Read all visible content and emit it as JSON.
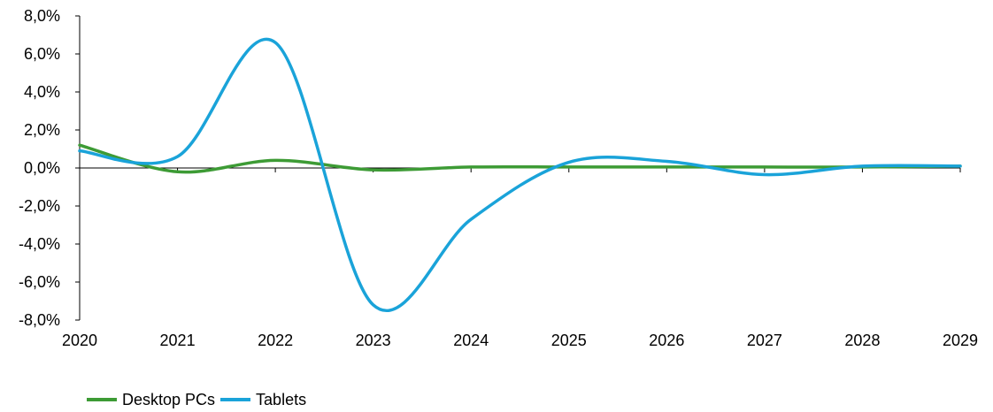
{
  "chart_data": {
    "type": "line",
    "title": "",
    "xlabel": "",
    "ylabel": "",
    "x": [
      2020,
      2021,
      2022,
      2023,
      2024,
      2025,
      2026,
      2027,
      2028,
      2029
    ],
    "x_tick_labels": [
      "2020",
      "2021",
      "2022",
      "2023",
      "2024",
      "2025",
      "2026",
      "2027",
      "2028",
      "2029"
    ],
    "y_tick_labels": [
      "8,0%",
      "6,0%",
      "4,0%",
      "2,0%",
      "0,0%",
      "-2,0%",
      "-4,0%",
      "-6,0%",
      "-8,0%"
    ],
    "ylim": [
      -8.0,
      8.0
    ],
    "y_unit": "%",
    "grid": false,
    "smoothed": true,
    "legend_position": "bottom-left",
    "series": [
      {
        "name": "Desktop PCs",
        "color": "#3d9b35",
        "values": [
          1.2,
          -0.2,
          0.4,
          -0.1,
          0.05,
          0.05,
          0.05,
          0.05,
          0.05,
          0.1
        ]
      },
      {
        "name": "Tablets",
        "color": "#1aa3d9",
        "values": [
          0.9,
          0.6,
          6.6,
          -7.2,
          -2.7,
          0.3,
          0.35,
          -0.35,
          0.1,
          0.1
        ]
      }
    ]
  }
}
